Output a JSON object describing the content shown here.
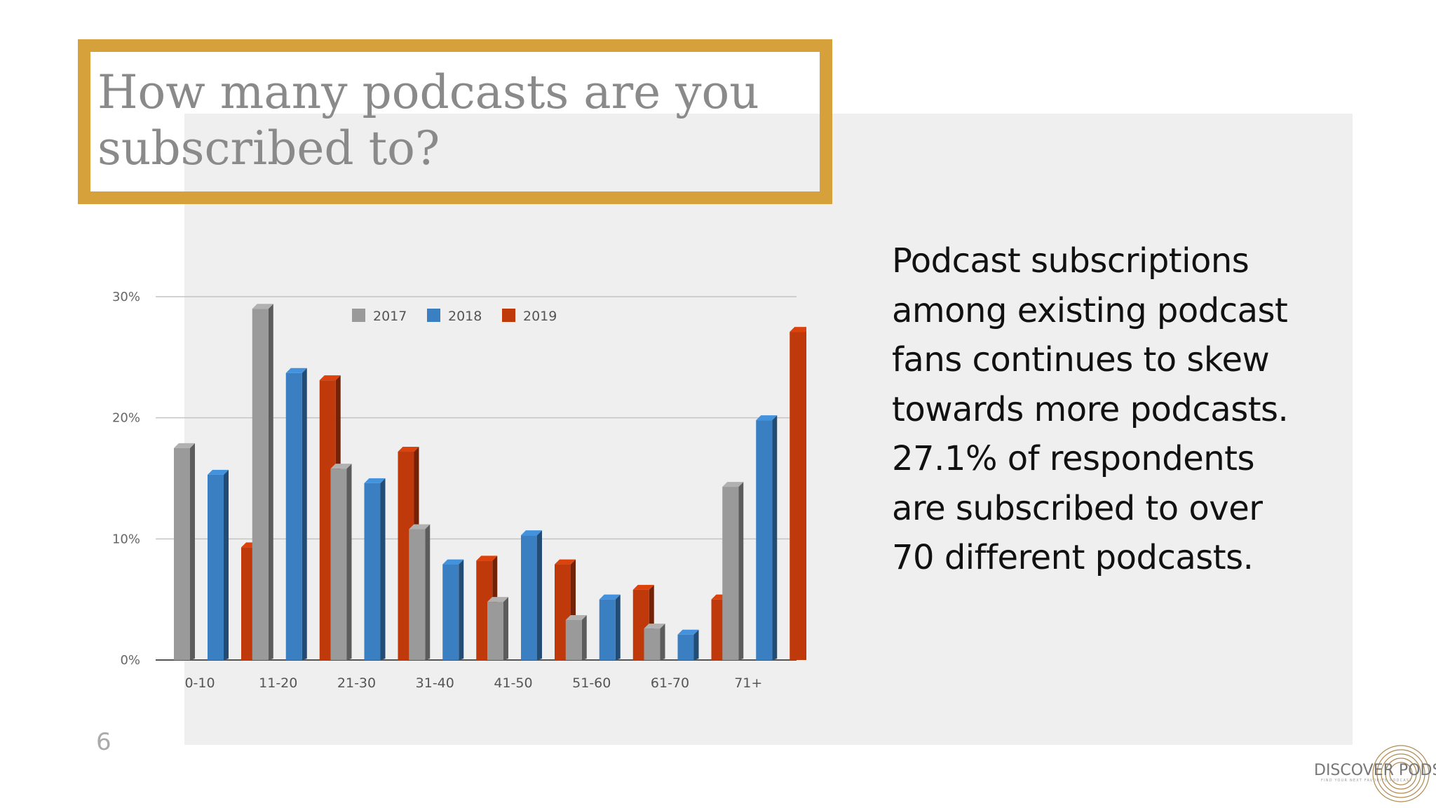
{
  "slide": {
    "title": "How many podcasts are you subscribed to?",
    "body": "Podcast subscriptions among existing podcast fans continues to skew towards more podcasts. 27.1% of respondents are subscribed to over 70 different podcasts.",
    "page_number": "6",
    "colors": {
      "accent_border": "#d6a13a",
      "panel": "#f0eff0"
    }
  },
  "logo": {
    "name": "DISCOVER PODS",
    "tagline": "FIND YOUR NEXT FAVORITE PODCAST",
    "icon": "concentric-rings-icon"
  },
  "chart_data": {
    "type": "bar",
    "categories": [
      "0-10",
      "11-20",
      "21-30",
      "31-40",
      "41-50",
      "51-60",
      "61-70",
      "71+"
    ],
    "series": [
      {
        "name": "2017",
        "color": "#9a9a9a",
        "values": [
          17.5,
          29.0,
          15.8,
          10.8,
          4.8,
          3.3,
          2.6,
          14.3
        ]
      },
      {
        "name": "2018",
        "color": "#3a7fc1",
        "values": [
          15.3,
          23.7,
          14.6,
          7.9,
          10.3,
          5.0,
          2.1,
          19.8
        ]
      },
      {
        "name": "2019",
        "color": "#c0390b",
        "values": [
          9.3,
          23.1,
          17.2,
          8.2,
          7.9,
          5.8,
          5.0,
          27.1
        ]
      }
    ],
    "yticks": [
      "0%",
      "10%",
      "20%",
      "30%"
    ],
    "ylim": [
      0,
      30
    ],
    "grid": true,
    "legend": "top-center",
    "title": "",
    "xlabel": "",
    "ylabel": ""
  }
}
